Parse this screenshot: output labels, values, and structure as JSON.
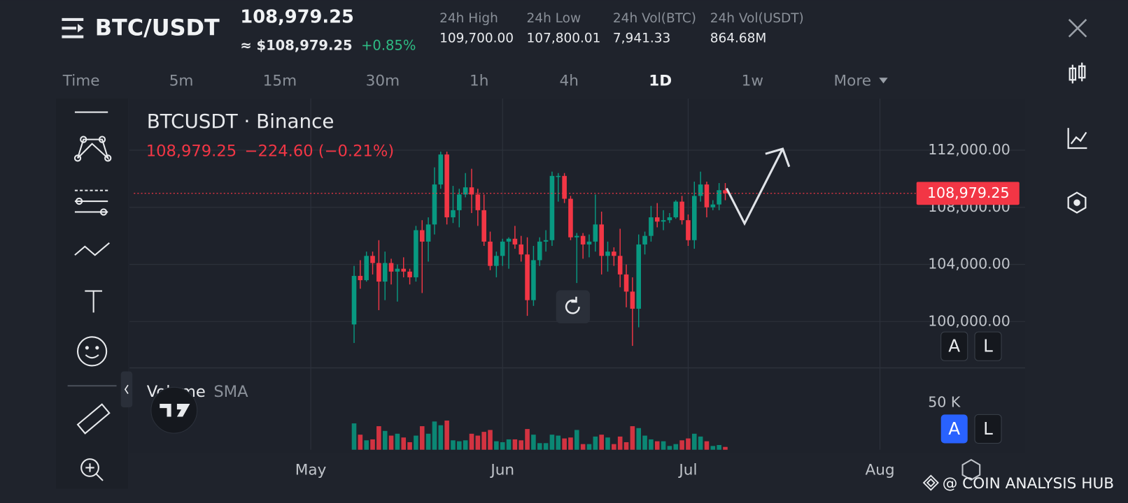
{
  "header": {
    "pair": "BTC/USDT",
    "price": "108,979.25",
    "usd_price": "≈ $108,979.25",
    "change": "+0.85%",
    "stats": [
      {
        "label": "24h High",
        "value": "109,700.00"
      },
      {
        "label": "24h Low",
        "value": "107,800.01"
      },
      {
        "label": "24h Vol(BTC)",
        "value": "7,941.33"
      },
      {
        "label": "24h Vol(USDT)",
        "value": "864.68M"
      }
    ]
  },
  "timeframes": [
    {
      "label": "Time",
      "active": false
    },
    {
      "label": "5m",
      "active": false
    },
    {
      "label": "15m",
      "active": false
    },
    {
      "label": "30m",
      "active": false
    },
    {
      "label": "1h",
      "active": false
    },
    {
      "label": "4h",
      "active": false
    },
    {
      "label": "1D",
      "active": true
    },
    {
      "label": "1w",
      "active": false
    },
    {
      "label": "More",
      "active": false
    }
  ],
  "legend": {
    "symbol": "BTCUSDT · Binance",
    "last_label": "108,979.25",
    "change_label": "−224.60 (−0.21%)",
    "volume_label": "Volume",
    "sma_label": "SMA"
  },
  "scale_buttons": [
    "A",
    "L"
  ],
  "watermark": "@ COIN ANALYSIS HUB",
  "chart_data": {
    "type": "candlestick",
    "up_color": "#089981",
    "down_color": "#f23645",
    "grid": true,
    "ylim": [
      96760,
      115620
    ],
    "yticks": [
      {
        "value": 100000,
        "label": "100,000.00"
      },
      {
        "value": 104000,
        "label": "104,000.00"
      },
      {
        "value": 108000,
        "label": "108,000.00"
      },
      {
        "value": 112000,
        "label": "112,000.00"
      }
    ],
    "last_price": {
      "value": 108979.25,
      "label": "108,979.25"
    },
    "volume_lim": [
      0,
      87000
    ],
    "volume_ticks": [
      {
        "value": 50000,
        "label": "50 K"
      }
    ],
    "xticks": [
      {
        "value": "05-01",
        "label": "May"
      },
      {
        "value": "06-01",
        "label": "Jun"
      },
      {
        "value": "07-01",
        "label": "Jul"
      },
      {
        "value": "08-01",
        "label": "Aug"
      }
    ],
    "candles": [
      {
        "x": "05-08",
        "open": 99800,
        "high": 103900,
        "low": 98500,
        "close": 103200,
        "volume": 28000
      },
      {
        "x": "05-09",
        "open": 103200,
        "high": 104300,
        "low": 102300,
        "close": 102900,
        "volume": 16000
      },
      {
        "x": "05-10",
        "open": 102900,
        "high": 104900,
        "low": 102800,
        "close": 104600,
        "volume": 10000
      },
      {
        "x": "05-11",
        "open": 104600,
        "high": 104900,
        "low": 103300,
        "close": 104100,
        "volume": 11000
      },
      {
        "x": "05-12",
        "open": 104100,
        "high": 105700,
        "low": 100800,
        "close": 102800,
        "volume": 25000
      },
      {
        "x": "05-13",
        "open": 102800,
        "high": 104900,
        "low": 101500,
        "close": 104100,
        "volume": 20000
      },
      {
        "x": "05-14",
        "open": 104100,
        "high": 104400,
        "low": 102600,
        "close": 103500,
        "volume": 15000
      },
      {
        "x": "05-15",
        "open": 103500,
        "high": 104000,
        "low": 101400,
        "close": 103700,
        "volume": 17000
      },
      {
        "x": "05-16",
        "open": 103700,
        "high": 104500,
        "low": 103100,
        "close": 103500,
        "volume": 13000
      },
      {
        "x": "05-17",
        "open": 103500,
        "high": 103700,
        "low": 102600,
        "close": 103100,
        "volume": 8000
      },
      {
        "x": "05-18",
        "open": 103100,
        "high": 106700,
        "low": 102800,
        "close": 106400,
        "volume": 15000
      },
      {
        "x": "05-19",
        "open": 106400,
        "high": 107100,
        "low": 102000,
        "close": 105600,
        "volume": 25000
      },
      {
        "x": "05-20",
        "open": 105600,
        "high": 107300,
        "low": 104200,
        "close": 106800,
        "volume": 17000
      },
      {
        "x": "05-21",
        "open": 106800,
        "high": 110800,
        "low": 106100,
        "close": 109600,
        "volume": 30000
      },
      {
        "x": "05-22",
        "open": 109600,
        "high": 111900,
        "low": 109300,
        "close": 111700,
        "volume": 26000
      },
      {
        "x": "05-23",
        "open": 111700,
        "high": 111900,
        "low": 106800,
        "close": 107300,
        "volume": 31000
      },
      {
        "x": "05-24",
        "open": 107300,
        "high": 109500,
        "low": 106900,
        "close": 107800,
        "volume": 10000
      },
      {
        "x": "05-25",
        "open": 107800,
        "high": 109300,
        "low": 106600,
        "close": 108900,
        "volume": 9000
      },
      {
        "x": "05-26",
        "open": 108900,
        "high": 110400,
        "low": 108700,
        "close": 109400,
        "volume": 10000
      },
      {
        "x": "05-27",
        "open": 109400,
        "high": 110700,
        "low": 107600,
        "close": 108900,
        "volume": 17000
      },
      {
        "x": "05-28",
        "open": 108900,
        "high": 109300,
        "low": 106700,
        "close": 107800,
        "volume": 15000
      },
      {
        "x": "05-29",
        "open": 107800,
        "high": 108900,
        "low": 105300,
        "close": 105600,
        "volume": 19000
      },
      {
        "x": "05-30",
        "open": 105600,
        "high": 106300,
        "low": 103600,
        "close": 103900,
        "volume": 21000
      },
      {
        "x": "05-31",
        "open": 103900,
        "high": 104900,
        "low": 103100,
        "close": 104600,
        "volume": 9000
      },
      {
        "x": "06-01",
        "open": 104600,
        "high": 105800,
        "low": 103900,
        "close": 105600,
        "volume": 8000
      },
      {
        "x": "06-02",
        "open": 105600,
        "high": 105900,
        "low": 103700,
        "close": 105800,
        "volume": 11000
      },
      {
        "x": "06-03",
        "open": 105800,
        "high": 106700,
        "low": 105100,
        "close": 105400,
        "volume": 11000
      },
      {
        "x": "06-04",
        "open": 105400,
        "high": 106000,
        "low": 104200,
        "close": 104700,
        "volume": 10000
      },
      {
        "x": "06-05",
        "open": 104700,
        "high": 105900,
        "low": 100400,
        "close": 101500,
        "volume": 22000
      },
      {
        "x": "06-06",
        "open": 101500,
        "high": 105300,
        "low": 101100,
        "close": 104300,
        "volume": 16000
      },
      {
        "x": "06-07",
        "open": 104300,
        "high": 105900,
        "low": 103900,
        "close": 105600,
        "volume": 7000
      },
      {
        "x": "06-08",
        "open": 105600,
        "high": 106400,
        "low": 104900,
        "close": 105700,
        "volume": 7000
      },
      {
        "x": "06-09",
        "open": 105700,
        "high": 110500,
        "low": 105300,
        "close": 110200,
        "volume": 16000
      },
      {
        "x": "06-10",
        "open": 110200,
        "high": 110400,
        "low": 108400,
        "close": 110200,
        "volume": 15000
      },
      {
        "x": "06-11",
        "open": 110200,
        "high": 110400,
        "low": 108300,
        "close": 108600,
        "volume": 12000
      },
      {
        "x": "06-12",
        "open": 108600,
        "high": 108800,
        "low": 105700,
        "close": 105900,
        "volume": 13000
      },
      {
        "x": "06-13",
        "open": 105900,
        "high": 106200,
        "low": 102700,
        "close": 106000,
        "volume": 21000
      },
      {
        "x": "06-14",
        "open": 106000,
        "high": 106200,
        "low": 104400,
        "close": 105400,
        "volume": 6000
      },
      {
        "x": "06-15",
        "open": 105400,
        "high": 106100,
        "low": 104500,
        "close": 105600,
        "volume": 6000
      },
      {
        "x": "06-16",
        "open": 105600,
        "high": 108900,
        "low": 104900,
        "close": 106800,
        "volume": 14000
      },
      {
        "x": "06-17",
        "open": 106800,
        "high": 107700,
        "low": 103300,
        "close": 104600,
        "volume": 16000
      },
      {
        "x": "06-18",
        "open": 104600,
        "high": 105600,
        "low": 103500,
        "close": 104900,
        "volume": 13000
      },
      {
        "x": "06-19",
        "open": 104900,
        "high": 105200,
        "low": 103900,
        "close": 104600,
        "volume": 6000
      },
      {
        "x": "06-20",
        "open": 104600,
        "high": 106500,
        "low": 102400,
        "close": 103300,
        "volume": 14000
      },
      {
        "x": "06-21",
        "open": 103300,
        "high": 104000,
        "low": 101000,
        "close": 102100,
        "volume": 8000
      },
      {
        "x": "06-22",
        "open": 102100,
        "high": 103100,
        "low": 98300,
        "close": 100900,
        "volume": 25000
      },
      {
        "x": "06-23",
        "open": 100900,
        "high": 106100,
        "low": 99600,
        "close": 105400,
        "volume": 23000
      },
      {
        "x": "06-24",
        "open": 105400,
        "high": 106300,
        "low": 104700,
        "close": 106000,
        "volume": 15000
      },
      {
        "x": "06-25",
        "open": 106000,
        "high": 108100,
        "low": 105600,
        "close": 107300,
        "volume": 11000
      },
      {
        "x": "06-26",
        "open": 107300,
        "high": 108300,
        "low": 106600,
        "close": 107000,
        "volume": 9000
      },
      {
        "x": "06-27",
        "open": 107000,
        "high": 107800,
        "low": 106400,
        "close": 107100,
        "volume": 9000
      },
      {
        "x": "06-28",
        "open": 107100,
        "high": 107600,
        "low": 106900,
        "close": 107300,
        "volume": 4000
      },
      {
        "x": "06-29",
        "open": 107300,
        "high": 108500,
        "low": 107200,
        "close": 108400,
        "volume": 6000
      },
      {
        "x": "06-30",
        "open": 108400,
        "high": 108800,
        "low": 106800,
        "close": 107100,
        "volume": 10000
      },
      {
        "x": "07-01",
        "open": 107100,
        "high": 107500,
        "low": 105300,
        "close": 105700,
        "volume": 12000
      },
      {
        "x": "07-02",
        "open": 105700,
        "high": 109800,
        "low": 105100,
        "close": 108800,
        "volume": 17000
      },
      {
        "x": "07-03",
        "open": 108800,
        "high": 110500,
        "low": 108400,
        "close": 109600,
        "volume": 14000
      },
      {
        "x": "07-04",
        "open": 109600,
        "high": 109800,
        "low": 107300,
        "close": 108000,
        "volume": 9000
      },
      {
        "x": "07-05",
        "open": 108000,
        "high": 108500,
        "low": 107800,
        "close": 108200,
        "volume": 4000
      },
      {
        "x": "07-06",
        "open": 108200,
        "high": 109700,
        "low": 107800,
        "close": 109200,
        "volume": 5000
      },
      {
        "x": "07-07",
        "open": 109200,
        "high": 109700,
        "low": 108500,
        "close": 108979.25,
        "volume": 3000
      }
    ]
  }
}
